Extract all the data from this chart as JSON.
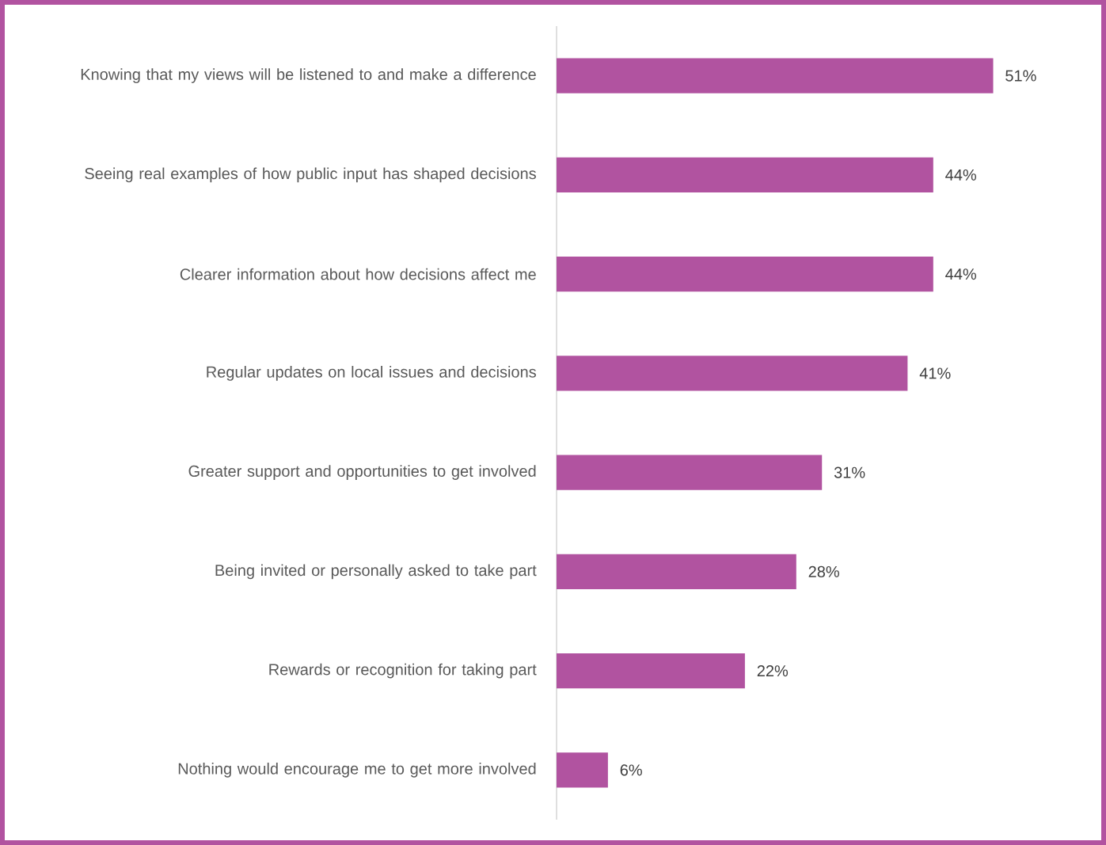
{
  "chart_data": {
    "type": "bar",
    "orientation": "horizontal",
    "color": "#b153a0",
    "categories": [
      "Knowing that my views will be listened to and make a difference",
      "Seeing real examples of how public input has shaped decisions",
      "Clearer information about how decisions affect me",
      "Regular updates on local issues and decisions",
      "Greater support and opportunities to get involved",
      "Being invited or personally asked to take part",
      "Rewards or recognition for taking part",
      "Nothing would encourage me to get more involved"
    ],
    "values": [
      51,
      44,
      44,
      41,
      31,
      28,
      22,
      6
    ],
    "value_labels": [
      "51%",
      "44%",
      "44%",
      "41%",
      "31%",
      "28%",
      "22%",
      "6%"
    ]
  }
}
